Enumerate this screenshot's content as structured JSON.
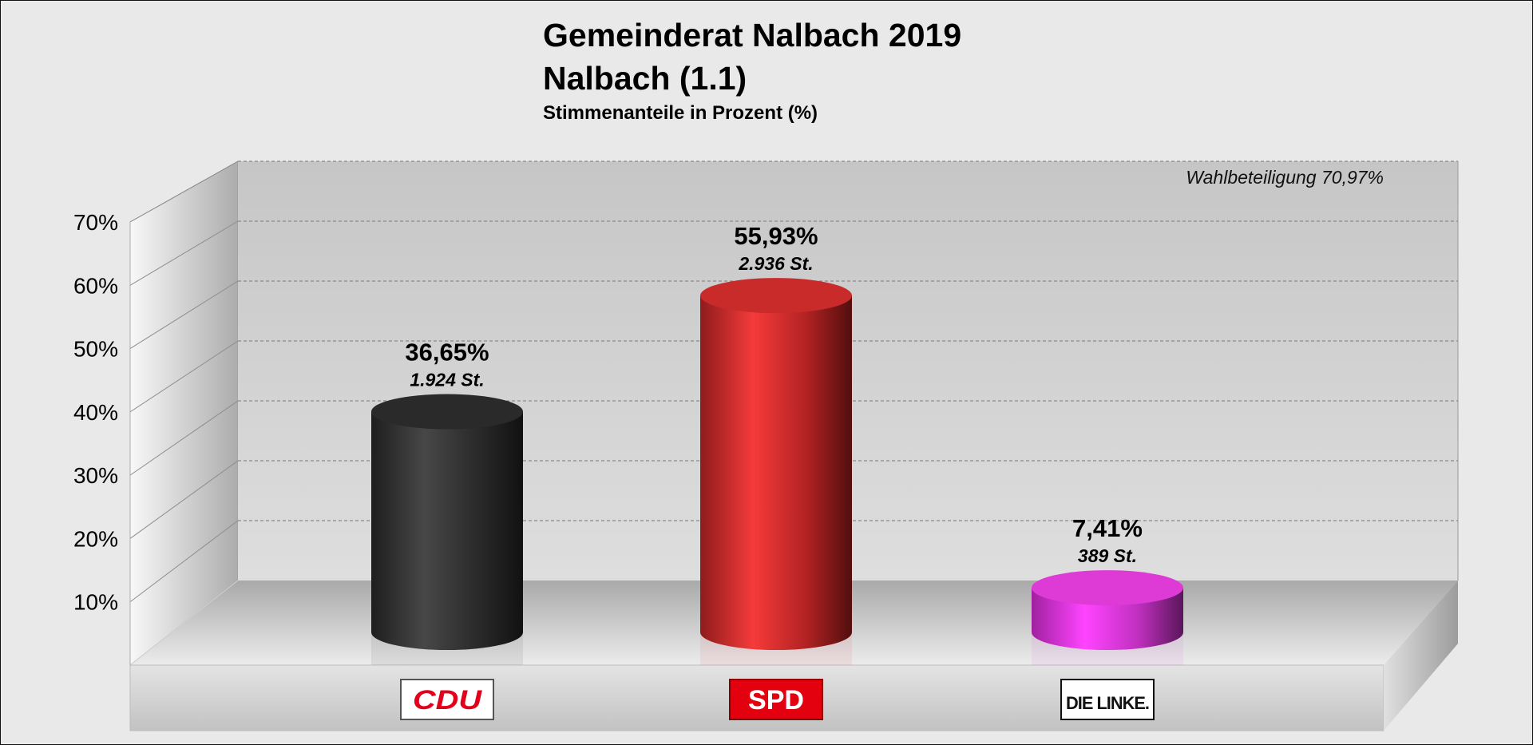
{
  "header": {
    "title": "Gemeinderat Nalbach 2019",
    "subtitle": "Nalbach (1.1)",
    "caption": "Stimmenanteile in Prozent (%)"
  },
  "turnout_label": "Wahlbeteiligung 70,97%",
  "chart_data": {
    "type": "bar",
    "style": "3d-cylinder",
    "title": "Gemeinderat Nalbach 2019",
    "subtitle": "Nalbach (1.1) — Stimmenanteile in Prozent (%)",
    "xlabel": "",
    "ylabel": "",
    "ylim": [
      0,
      70
    ],
    "yticks": [
      10,
      20,
      30,
      40,
      50,
      60,
      70
    ],
    "ytick_labels": [
      "10%",
      "20%",
      "30%",
      "40%",
      "50%",
      "60%",
      "70%"
    ],
    "grid": true,
    "annotation": "Wahlbeteiligung 70,97%",
    "categories": [
      "CDU",
      "SPD",
      "DIE LINKE."
    ],
    "values": [
      36.65,
      55.93,
      7.41
    ],
    "value_labels": [
      "36,65%",
      "55,93%",
      "7,41%"
    ],
    "votes": [
      1924,
      2936,
      389
    ],
    "vote_labels": [
      "1.924 St.",
      "2.936 St.",
      "389 St."
    ],
    "colors": [
      "#2b2b2b",
      "#e03030",
      "#e040e0"
    ]
  },
  "logos": [
    {
      "text": "CDU",
      "bg": "#ffffff",
      "fg": "#e2001a",
      "border": "#555555"
    },
    {
      "text": "SPD",
      "bg": "#e3000f",
      "fg": "#ffffff",
      "border": "#8a0000"
    },
    {
      "text": "DIE LINKE.",
      "bg": "#ffffff",
      "fg": "#111111",
      "border": "#111111"
    }
  ]
}
